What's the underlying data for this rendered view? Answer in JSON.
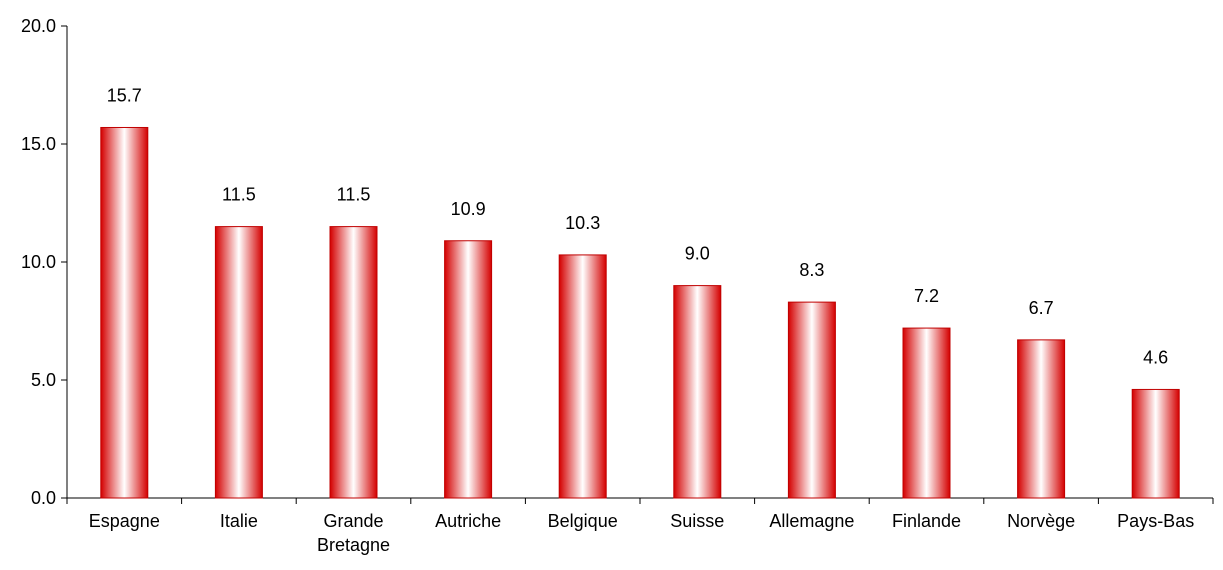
{
  "chart_data": {
    "type": "bar",
    "title": "",
    "xlabel": "",
    "ylabel": "",
    "ylim": [
      0,
      20
    ],
    "yticks": [
      "0.0",
      "5.0",
      "10.0",
      "15.0",
      "20.0"
    ],
    "grid": false,
    "legend": "none",
    "categories": [
      [
        "Espagne"
      ],
      [
        "Italie"
      ],
      [
        "Grande",
        "Bretagne"
      ],
      [
        "Autriche"
      ],
      [
        "Belgique"
      ],
      [
        "Suisse"
      ],
      [
        "Allemagne"
      ],
      [
        "Finlande"
      ],
      [
        "Norvège"
      ],
      [
        "Pays-Bas"
      ]
    ],
    "values": [
      15.7,
      11.5,
      11.5,
      10.9,
      10.3,
      9.0,
      8.3,
      7.2,
      6.7,
      4.6
    ],
    "value_labels": [
      "15.7",
      "11.5",
      "11.5",
      "10.9",
      "10.3",
      "9.0",
      "8.3",
      "7.2",
      "6.7",
      "4.6"
    ],
    "colors": {
      "bar_edge": "#c00000",
      "bar_dark": "#d40000",
      "bar_light": "#ffffff",
      "axis": "#000000"
    }
  }
}
